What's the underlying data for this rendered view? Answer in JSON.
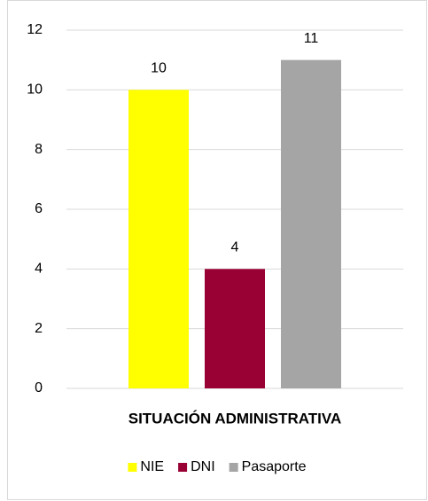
{
  "chart_data": {
    "type": "bar",
    "categories": [
      "SITUACIÓN ADMINISTRATIVA"
    ],
    "series": [
      {
        "name": "NIE",
        "color": "#ffff00",
        "values": [
          10
        ]
      },
      {
        "name": "DNI",
        "color": "#990033",
        "values": [
          4
        ]
      },
      {
        "name": "Pasaporte",
        "color": "#a5a5a5",
        "values": [
          11
        ]
      }
    ],
    "ylim": [
      0,
      12
    ],
    "yticks": [
      0,
      2,
      4,
      6,
      8,
      10,
      12
    ],
    "grid": true,
    "legend": "bottom"
  }
}
